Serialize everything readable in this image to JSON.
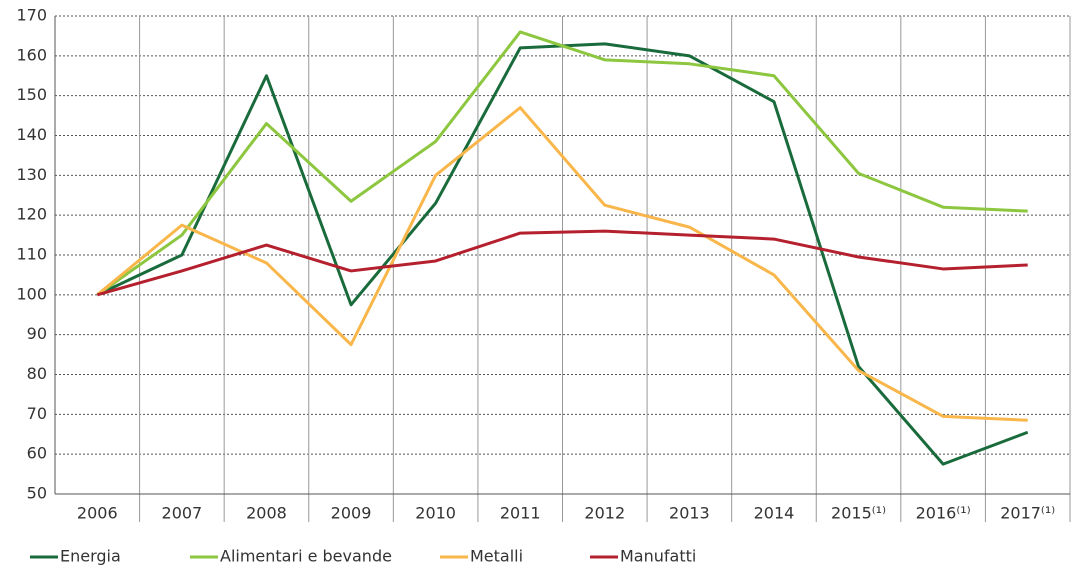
{
  "chart_data": {
    "type": "line",
    "categories": [
      "2006",
      "2007",
      "2008",
      "2009",
      "2010",
      "2011",
      "2012",
      "2013",
      "2014",
      "2015⁽¹⁾",
      "2016⁽¹⁾",
      "2017⁽¹⁾"
    ],
    "series": [
      {
        "name": "Energia",
        "color": "#1a6b3c",
        "values": [
          100,
          110,
          155,
          97.5,
          123,
          162,
          163,
          160,
          148.5,
          82,
          57.5,
          65.5
        ]
      },
      {
        "name": "Alimentari e bevande",
        "color": "#8dc63f",
        "values": [
          100,
          115,
          143,
          123.5,
          138.5,
          166,
          159,
          158,
          155,
          130.5,
          122,
          121
        ]
      },
      {
        "name": "Metalli",
        "color": "#f9b64a",
        "values": [
          100,
          117.5,
          108,
          87.5,
          130,
          147,
          122.5,
          117,
          105,
          81,
          69.5,
          68.5
        ]
      },
      {
        "name": "Manufatti",
        "color": "#b5202e",
        "values": [
          100,
          106,
          112.5,
          106,
          108.5,
          115.5,
          116,
          115,
          114,
          109.5,
          106.5,
          107.5
        ]
      }
    ],
    "ylim": [
      50,
      170
    ],
    "yticks": [
      50,
      60,
      70,
      80,
      90,
      100,
      110,
      120,
      130,
      140,
      150,
      160,
      170
    ],
    "grid": true,
    "legend": "bottom"
  }
}
